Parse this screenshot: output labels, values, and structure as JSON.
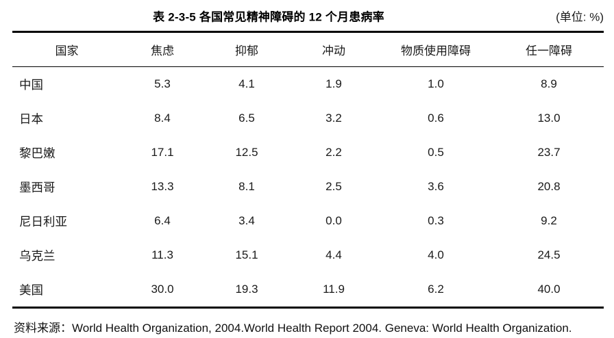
{
  "title": "表 2-3-5 各国常见精神障碍的 12 个月患病率",
  "unit_label": "(单位: %)",
  "table": {
    "columns": [
      "国家",
      "焦虑",
      "抑郁",
      "冲动",
      "物质使用障碍",
      "任一障碍"
    ],
    "rows": [
      {
        "country": "中国",
        "values": [
          "5.3",
          "4.1",
          "1.9",
          "1.0",
          "8.9"
        ]
      },
      {
        "country": "日本",
        "values": [
          "8.4",
          "6.5",
          "3.2",
          "0.6",
          "13.0"
        ]
      },
      {
        "country": "黎巴嫩",
        "values": [
          "17.1",
          "12.5",
          "2.2",
          "0.5",
          "23.7"
        ]
      },
      {
        "country": "墨西哥",
        "values": [
          "13.3",
          "8.1",
          "2.5",
          "3.6",
          "20.8"
        ]
      },
      {
        "country": "尼日利亚",
        "values": [
          "6.4",
          "3.4",
          "0.0",
          "0.3",
          "9.2"
        ]
      },
      {
        "country": "乌克兰",
        "values": [
          "11.3",
          "15.1",
          "4.4",
          "4.0",
          "24.5"
        ]
      },
      {
        "country": "美国",
        "values": [
          "30.0",
          "19.3",
          "11.9",
          "6.2",
          "40.0"
        ]
      }
    ]
  },
  "source": "资料来源：World Health Organization, 2004.World Health Report 2004. Geneva: World Health Organization.",
  "colors": {
    "background": "#ffffff",
    "text": "#1a1a1a",
    "title": "#000000",
    "rule": "#000000"
  }
}
